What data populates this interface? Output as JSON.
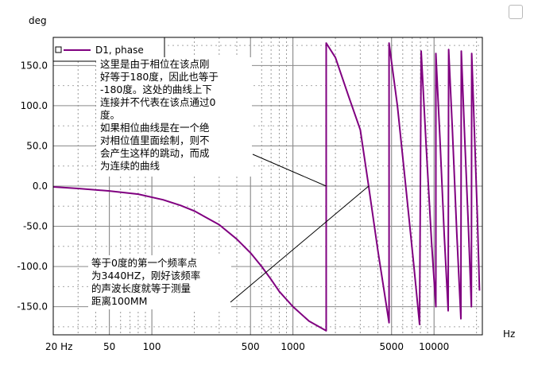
{
  "chart_data": {
    "type": "line",
    "x_scale": "log",
    "xlim": [
      20,
      22000
    ],
    "ylim": [
      -185,
      185
    ],
    "grid": true,
    "xlabel": "Hz",
    "ylabel": "deg",
    "x_ticks": [
      {
        "value": 20,
        "label": "20 Hz"
      },
      {
        "value": 50,
        "label": "50"
      },
      {
        "value": 100,
        "label": "100"
      },
      {
        "value": 500,
        "label": "500"
      },
      {
        "value": 1000,
        "label": "1000"
      },
      {
        "value": 5000,
        "label": "5000"
      },
      {
        "value": 10000,
        "label": "10000"
      }
    ],
    "y_ticks": [
      {
        "value": 150,
        "label": "150.0"
      },
      {
        "value": 100,
        "label": "100.0"
      },
      {
        "value": 50,
        "label": "50.0"
      },
      {
        "value": 0,
        "label": "0.0"
      },
      {
        "value": -50,
        "label": "-50.0"
      },
      {
        "value": -100,
        "label": "-100.0"
      },
      {
        "value": -150,
        "label": "-150.0"
      }
    ],
    "legend": {
      "position": "top-left",
      "entries": [
        "D1, phase"
      ]
    },
    "series": [
      {
        "name": "D1, phase",
        "color": "#800080",
        "points": [
          [
            20,
            -1
          ],
          [
            30,
            -3
          ],
          [
            50,
            -6
          ],
          [
            80,
            -10
          ],
          [
            120,
            -17
          ],
          [
            160,
            -24
          ],
          [
            200,
            -31
          ],
          [
            300,
            -48
          ],
          [
            400,
            -66
          ],
          [
            500,
            -83
          ],
          [
            600,
            -100
          ],
          [
            700,
            -116
          ],
          [
            800,
            -131
          ],
          [
            1000,
            -150
          ],
          [
            1300,
            -168
          ],
          [
            1720,
            -180
          ],
          [
            1720,
            178
          ],
          [
            2000,
            160
          ],
          [
            2500,
            110
          ],
          [
            3000,
            70
          ],
          [
            3440,
            0
          ],
          [
            4000,
            -80
          ],
          [
            4800,
            -170
          ],
          [
            4800,
            178
          ],
          [
            5500,
            100
          ],
          [
            6300,
            0
          ],
          [
            7200,
            -100
          ],
          [
            7900,
            -172
          ],
          [
            8100,
            168
          ],
          [
            8800,
            50
          ],
          [
            9600,
            -70
          ],
          [
            10300,
            -150
          ],
          [
            10300,
            165
          ],
          [
            11000,
            60
          ],
          [
            11800,
            -60
          ],
          [
            12600,
            -155
          ],
          [
            12700,
            170
          ],
          [
            13500,
            70
          ],
          [
            14500,
            -60
          ],
          [
            15500,
            -165
          ],
          [
            15600,
            168
          ],
          [
            16500,
            60
          ],
          [
            17500,
            -50
          ],
          [
            18400,
            -150
          ],
          [
            18500,
            165
          ],
          [
            19400,
            60
          ],
          [
            20300,
            -40
          ],
          [
            21000,
            -130
          ]
        ]
      }
    ],
    "annotations": [
      {
        "lines": [
          "这里是由于相位在该点刚",
          "好等于180度，因此也等于",
          "-180度。这处的曲线上下",
          "连接并不代表在该点通过0",
          "度。",
          "如果相位曲线是在一个绝",
          "对相位值里面绘制，则不",
          "会产生这样的跳动，而成",
          "为连续的曲线"
        ],
        "target": [
          1720,
          0
        ]
      },
      {
        "lines": [
          "等于0度的第一个频率点",
          "为3440HZ，刚好该频率",
          "的声波长度就等于测量",
          "距离100MM"
        ],
        "target": [
          3440,
          0
        ]
      }
    ]
  }
}
